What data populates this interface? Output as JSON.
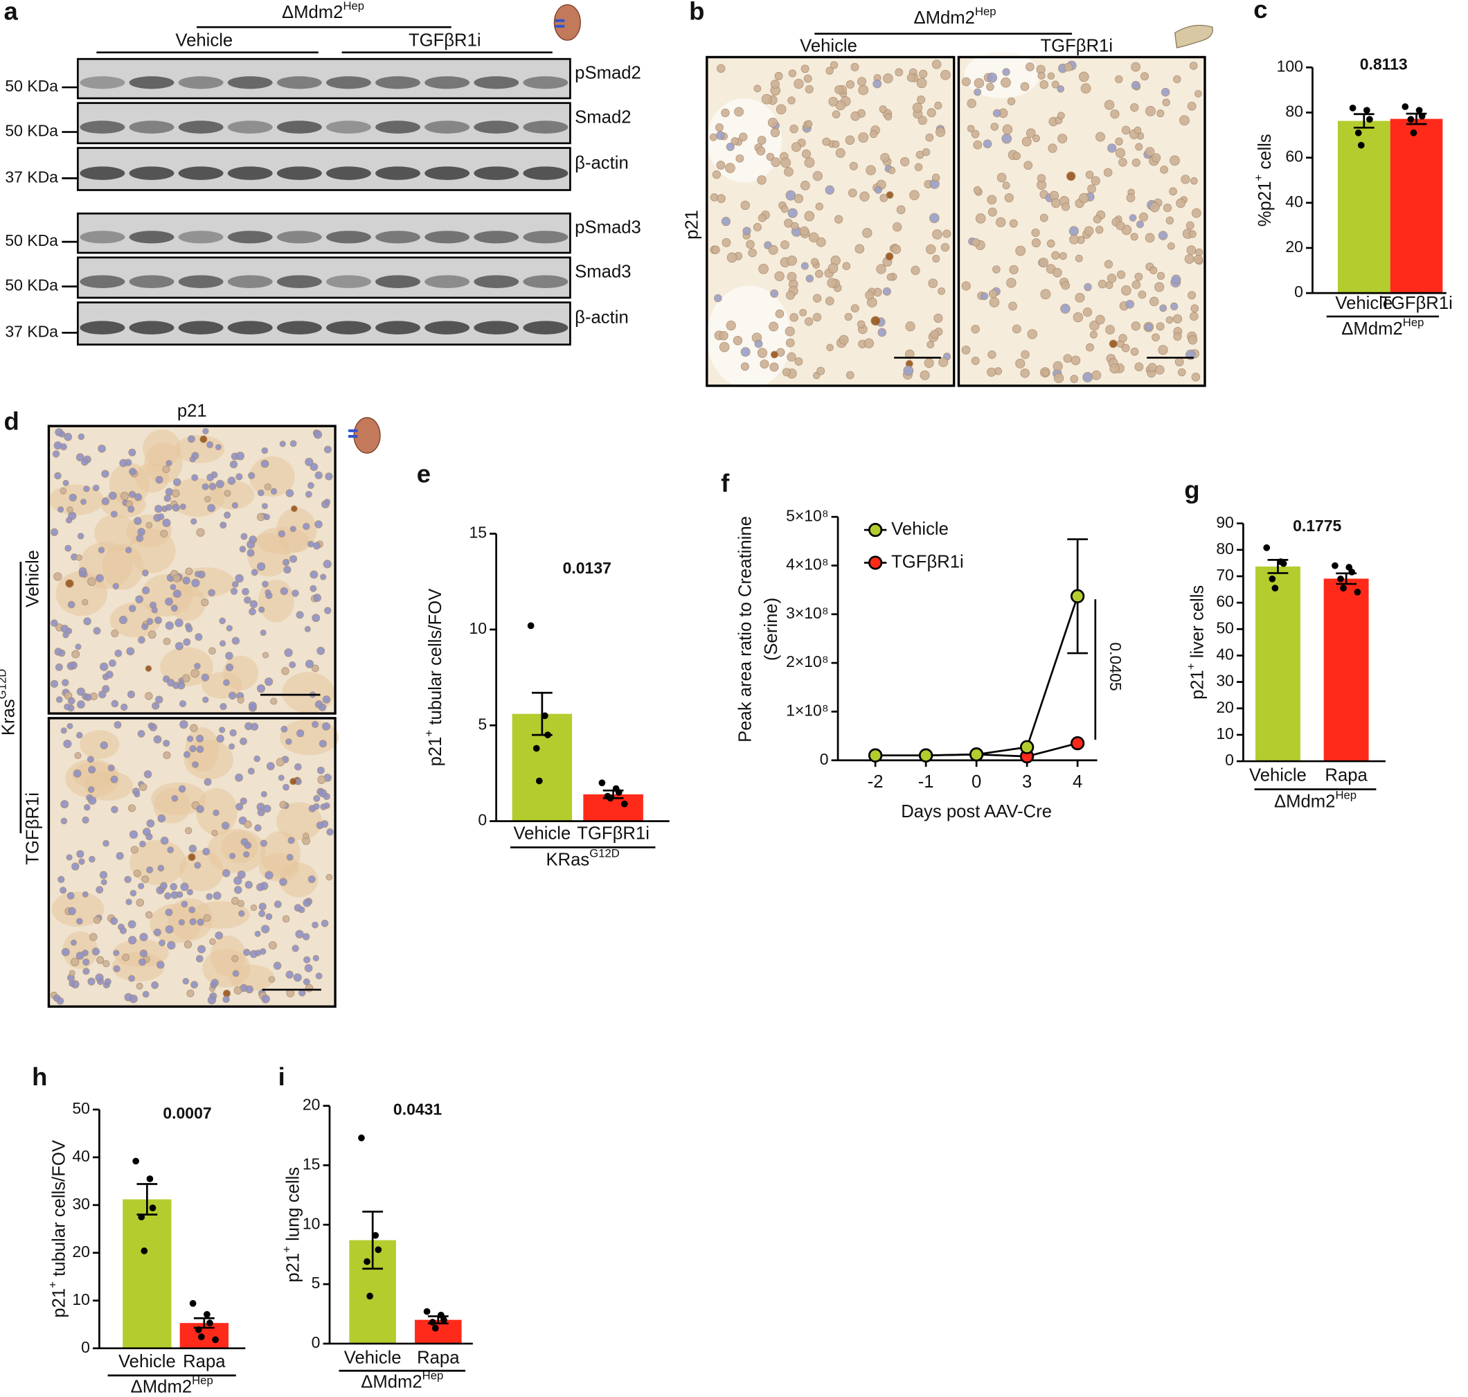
{
  "panels": {
    "a": {
      "letter": "a",
      "group_label": "ΔMdm2",
      "group_label_sup": "Hep",
      "conditions": [
        "Vehicle",
        "TGFβR1i"
      ],
      "rows": [
        {
          "marker": "50 KDa",
          "protein": "pSmad2"
        },
        {
          "marker": "50 KDa",
          "protein": "Smad2"
        },
        {
          "marker": "37 KDa",
          "protein": "β-actin"
        },
        {
          "marker": "50 KDa",
          "protein": "pSmad3"
        },
        {
          "marker": "50 KDa",
          "protein": "Smad3"
        },
        {
          "marker": "37 KDa",
          "protein": "β-actin"
        }
      ]
    },
    "b": {
      "letter": "b",
      "group_label": "ΔMdm2",
      "group_label_sup": "Hep",
      "conditions": [
        "Vehicle",
        "TGFβR1i"
      ],
      "stain": "p21"
    },
    "d": {
      "letter": "d",
      "stain": "p21",
      "conditions": [
        "Vehicle",
        "TGFβR1i"
      ],
      "group_label": "Kras",
      "group_label_sup": "G12D"
    }
  },
  "chart_data": [
    {
      "type": "bar",
      "letter": "c",
      "p_value": 0.8113,
      "ylabel": {
        "text": "%p21",
        "sup": "+",
        "rest": " cells"
      },
      "categories": [
        "Vehicle",
        "TGFβR1i"
      ],
      "colors": [
        "#b5cc2e",
        "#ff2a1a"
      ],
      "values": [
        76.3,
        77.2
      ],
      "errors": [
        3,
        2.3
      ],
      "points": [
        [
          82,
          81,
          77,
          71,
          65.5
        ],
        [
          82.6,
          81,
          78.4,
          77,
          71
        ]
      ],
      "group_label": "ΔMdm2",
      "group_label_sup": "Hep",
      "ylim": [
        0,
        100
      ],
      "yticks": [
        0,
        20,
        40,
        60,
        80,
        100
      ]
    },
    {
      "type": "bar",
      "letter": "e",
      "p_value": 0.0137,
      "ylabel": {
        "text": "p21",
        "sup": "+",
        "rest": " tubular cells/FOV"
      },
      "categories": [
        "Vehicle",
        "TGFβR1i"
      ],
      "colors": [
        "#b5cc2e",
        "#ff2a1a"
      ],
      "values": [
        5.6,
        1.4
      ],
      "errors": [
        1.1,
        0.2
      ],
      "points": [
        [
          10.2,
          5.5,
          4.5,
          3.8,
          2.1
        ],
        [
          2.0,
          1.7,
          1.5,
          1.3,
          1.2,
          0.9
        ]
      ],
      "group_label": "KRas",
      "group_label_sup": "G12D",
      "ylim": [
        0,
        15
      ],
      "yticks": [
        0,
        5,
        10,
        15
      ]
    },
    {
      "type": "line",
      "letter": "f",
      "p_value": 0.0405,
      "ylabel": [
        "Peak area ratio to Creatinine",
        "(Serine)"
      ],
      "xlabel": "Days post AAV-Cre",
      "categories": [
        "-2",
        "-1",
        "0",
        "3",
        "4"
      ],
      "series": [
        {
          "name": "Vehicle",
          "color": "#b5cc2e",
          "values": [
            10000000,
            10000000,
            12000000,
            27000000,
            337000000
          ],
          "errors": [
            null,
            null,
            null,
            null,
            117000000
          ]
        },
        {
          "name": "TGFβR1i",
          "color": "#ff2a1a",
          "values": [
            10000000,
            10000000,
            12000000,
            8000000,
            35000000
          ]
        }
      ],
      "ylim": [
        0,
        500000000
      ],
      "yticks": [
        0,
        {
          "value": 100000000,
          "label": "1×10⁸"
        },
        {
          "value": 200000000,
          "label": "2×10⁸"
        },
        {
          "value": 300000000,
          "label": "3×10⁸"
        },
        {
          "value": 400000000,
          "label": "4×10⁸"
        },
        {
          "value": 500000000,
          "label": "5×10⁸"
        }
      ]
    },
    {
      "type": "bar",
      "letter": "g",
      "p_value": 0.1775,
      "ylabel": {
        "text": "p21",
        "sup": "+",
        "rest": " liver cells"
      },
      "categories": [
        "Vehicle",
        "Rapa"
      ],
      "colors": [
        "#b5cc2e",
        "#ff2a1a"
      ],
      "values": [
        73.7,
        69.1
      ],
      "errors": [
        2.5,
        2
      ],
      "points": [
        [
          80.8,
          75.5,
          74.8,
          69,
          65.5
        ],
        [
          74,
          73.4,
          71.6,
          69,
          65.5,
          64
        ]
      ],
      "group_label": "ΔMdm2",
      "group_label_sup": "Hep",
      "ylim": [
        0,
        90
      ],
      "yticks": [
        0,
        10,
        20,
        30,
        40,
        50,
        60,
        70,
        80,
        90
      ]
    },
    {
      "type": "bar",
      "letter": "h",
      "p_value": 0.0007,
      "ylabel": {
        "text": "p21",
        "sup": "+",
        "rest": " tubular cells/FOV"
      },
      "categories": [
        "Vehicle",
        "Rapa"
      ],
      "colors": [
        "#b5cc2e",
        "#ff2a1a"
      ],
      "values": [
        31.2,
        5.3
      ],
      "errors": [
        3.2,
        1.0
      ],
      "points": [
        [
          39.2,
          35.5,
          29.4,
          27.5,
          20.4
        ],
        [
          9.4,
          7.1,
          5.3,
          3.9,
          2.4,
          1.8
        ]
      ],
      "group_label": "ΔMdm2",
      "group_label_sup": "Hep",
      "ylim": [
        0,
        50
      ],
      "yticks": [
        0,
        10,
        20,
        30,
        40,
        50
      ]
    },
    {
      "type": "bar",
      "letter": "i",
      "p_value": 0.0431,
      "ylabel": {
        "text": "p21",
        "sup": "+",
        "rest": " lung cells"
      },
      "categories": [
        "Vehicle",
        "Rapa"
      ],
      "colors": [
        "#b5cc2e",
        "#ff2a1a"
      ],
      "values": [
        8.7,
        2.0
      ],
      "errors": [
        2.4,
        0.3
      ],
      "points": [
        [
          17.3,
          9.1,
          7.9,
          6.9,
          4.0
        ],
        [
          2.7,
          2.4,
          2.0,
          1.8,
          1.3
        ]
      ],
      "group_label": "ΔMdm2",
      "group_label_sup": "Hep",
      "ylim": [
        0,
        20
      ],
      "yticks": [
        0,
        5,
        10,
        15,
        20
      ]
    }
  ]
}
